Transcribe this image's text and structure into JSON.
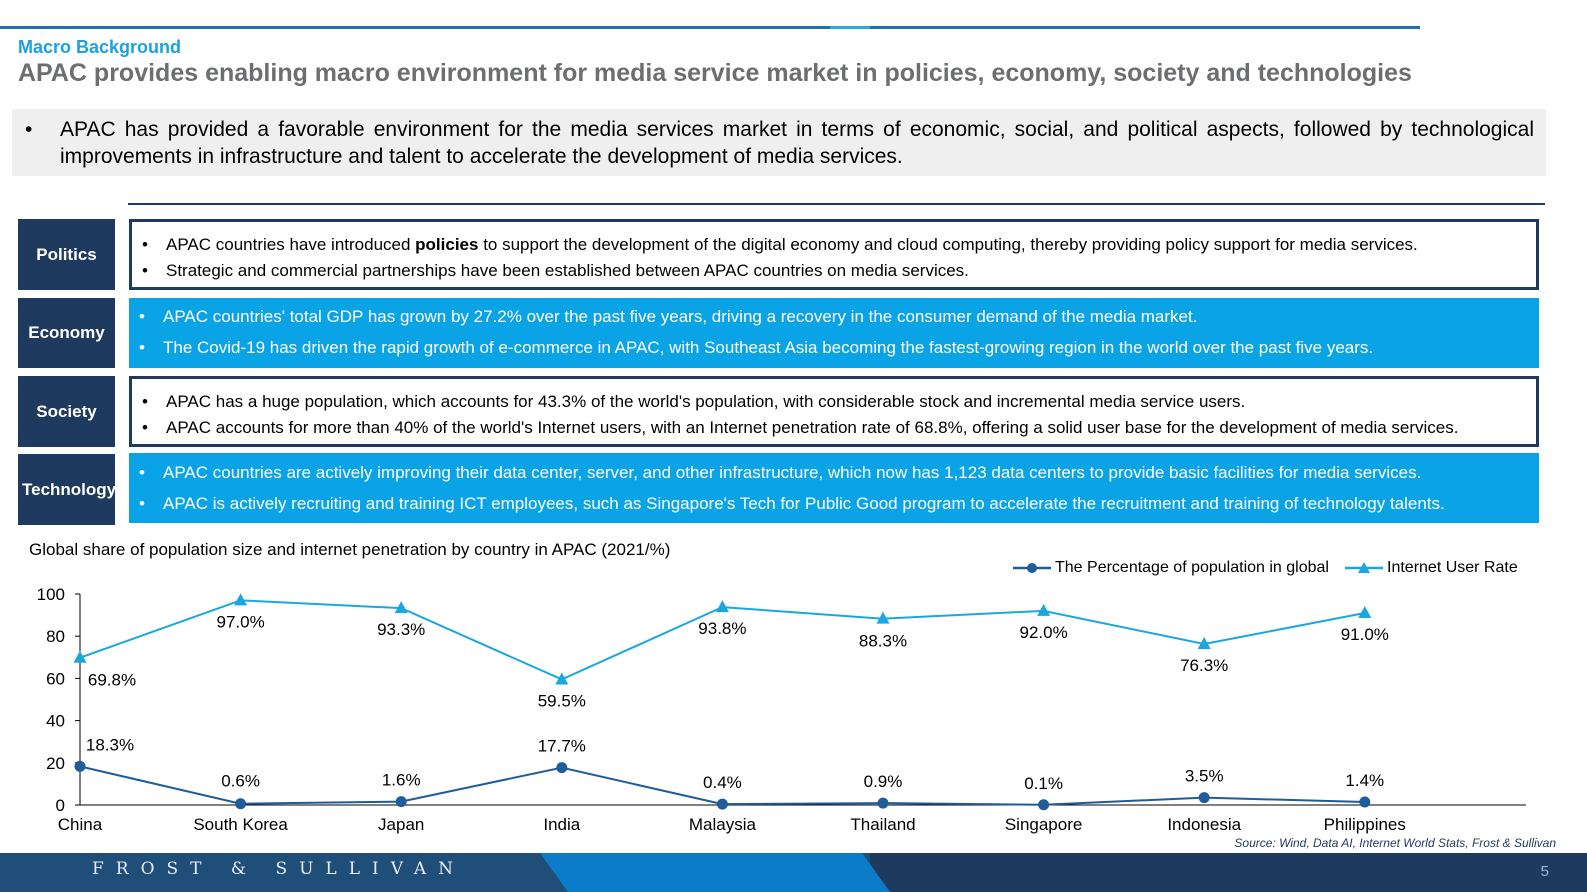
{
  "header": {
    "section_label": "Macro Background",
    "headline": "APAC provides enabling macro environment for media service market in policies, economy, society and technologies"
  },
  "summary": {
    "bullet": "•",
    "text": "APAC has provided a favorable environment for the media services market in terms of economic, social, and political aspects, followed by technological improvements in infrastructure and talent to accelerate the development of media services."
  },
  "categories": [
    {
      "label": "Politics",
      "style": "outlined",
      "items": [
        {
          "before": "APAC countries have introduced ",
          "bold": "policies",
          "after": " to support the development of the digital economy and cloud computing, thereby providing policy support for media services."
        },
        {
          "before": "Strategic and commercial partnerships have been established between APAC countries on media services.",
          "bold": "",
          "after": ""
        }
      ]
    },
    {
      "label": "Economy",
      "style": "filled",
      "items": [
        {
          "before": "APAC countries' total GDP has grown by 27.2% over the past five years, driving a recovery in the consumer demand of the media market.",
          "bold": "",
          "after": ""
        },
        {
          "before": "The Covid-19 has driven the rapid growth of e-commerce in APAC, with Southeast Asia becoming the fastest-growing region in the world over the past five years.",
          "bold": "",
          "after": ""
        }
      ]
    },
    {
      "label": "Society",
      "style": "outlined",
      "items": [
        {
          "before": "APAC has a huge population, which accounts for 43.3% of the world's population, with considerable stock and incremental media service users.",
          "bold": "",
          "after": ""
        },
        {
          "before": "APAC accounts for more than 40% of the world's Internet users, with an Internet penetration rate of 68.8%, offering a solid user base for the development of media services.",
          "bold": "",
          "after": ""
        }
      ]
    },
    {
      "label": "Technology",
      "style": "filled",
      "items": [
        {
          "before": "APAC countries are actively improving their data center, server, and other infrastructure, which now has 1,123 data centers to provide basic facilities for media services.",
          "bold": "",
          "after": ""
        },
        {
          "before": "APAC is actively recruiting and training ICT employees, such as Singapore's Tech for Public Good program to accelerate the recruitment and training of technology talents.",
          "bold": "",
          "after": ""
        }
      ]
    }
  ],
  "chart_data": {
    "type": "line",
    "title": "Global share of population size and internet penetration by country in APAC (2021/%)",
    "categories": [
      "China",
      "South Korea",
      "Japan",
      "India",
      "Malaysia",
      "Thailand",
      "Singapore",
      "Indonesia",
      "Philippines"
    ],
    "ylim": [
      0,
      100
    ],
    "yticks": [
      "0",
      "20",
      "40",
      "60",
      "80",
      "100"
    ],
    "grid": false,
    "legend_position": "top-right",
    "series": [
      {
        "name": "The Percentage of population in global",
        "values": [
          18.3,
          0.6,
          1.6,
          17.7,
          0.4,
          0.9,
          0.1,
          3.5,
          1.4
        ],
        "labels": [
          "18.3%",
          "0.6%",
          "1.6%",
          "17.7%",
          "0.4%",
          "0.9%",
          "0.1%",
          "3.5%",
          "1.4%"
        ],
        "color": "#1f5c99",
        "marker": "circle"
      },
      {
        "name": "Internet User Rate",
        "values": [
          69.8,
          97.0,
          93.3,
          59.5,
          93.8,
          88.3,
          92.0,
          76.3,
          91.0
        ],
        "labels": [
          "69.8%",
          "97.0%",
          "93.3%",
          "59.5%",
          "93.8%",
          "88.3%",
          "92.0%",
          "76.3%",
          "91.0%"
        ],
        "color": "#1aa7e0",
        "marker": "triangle"
      }
    ]
  },
  "source": "Source: Wind, Data AI, Internet World Stats, Frost & Sullivan",
  "footer": {
    "logo": "FROST & SULLIVAN",
    "page_number": "5"
  },
  "colors": {
    "navy": "#1e3a5f",
    "accent_blue": "#0aa3e6",
    "heading_blue": "#1aa1e0",
    "headline_gray": "#6d6e71"
  }
}
